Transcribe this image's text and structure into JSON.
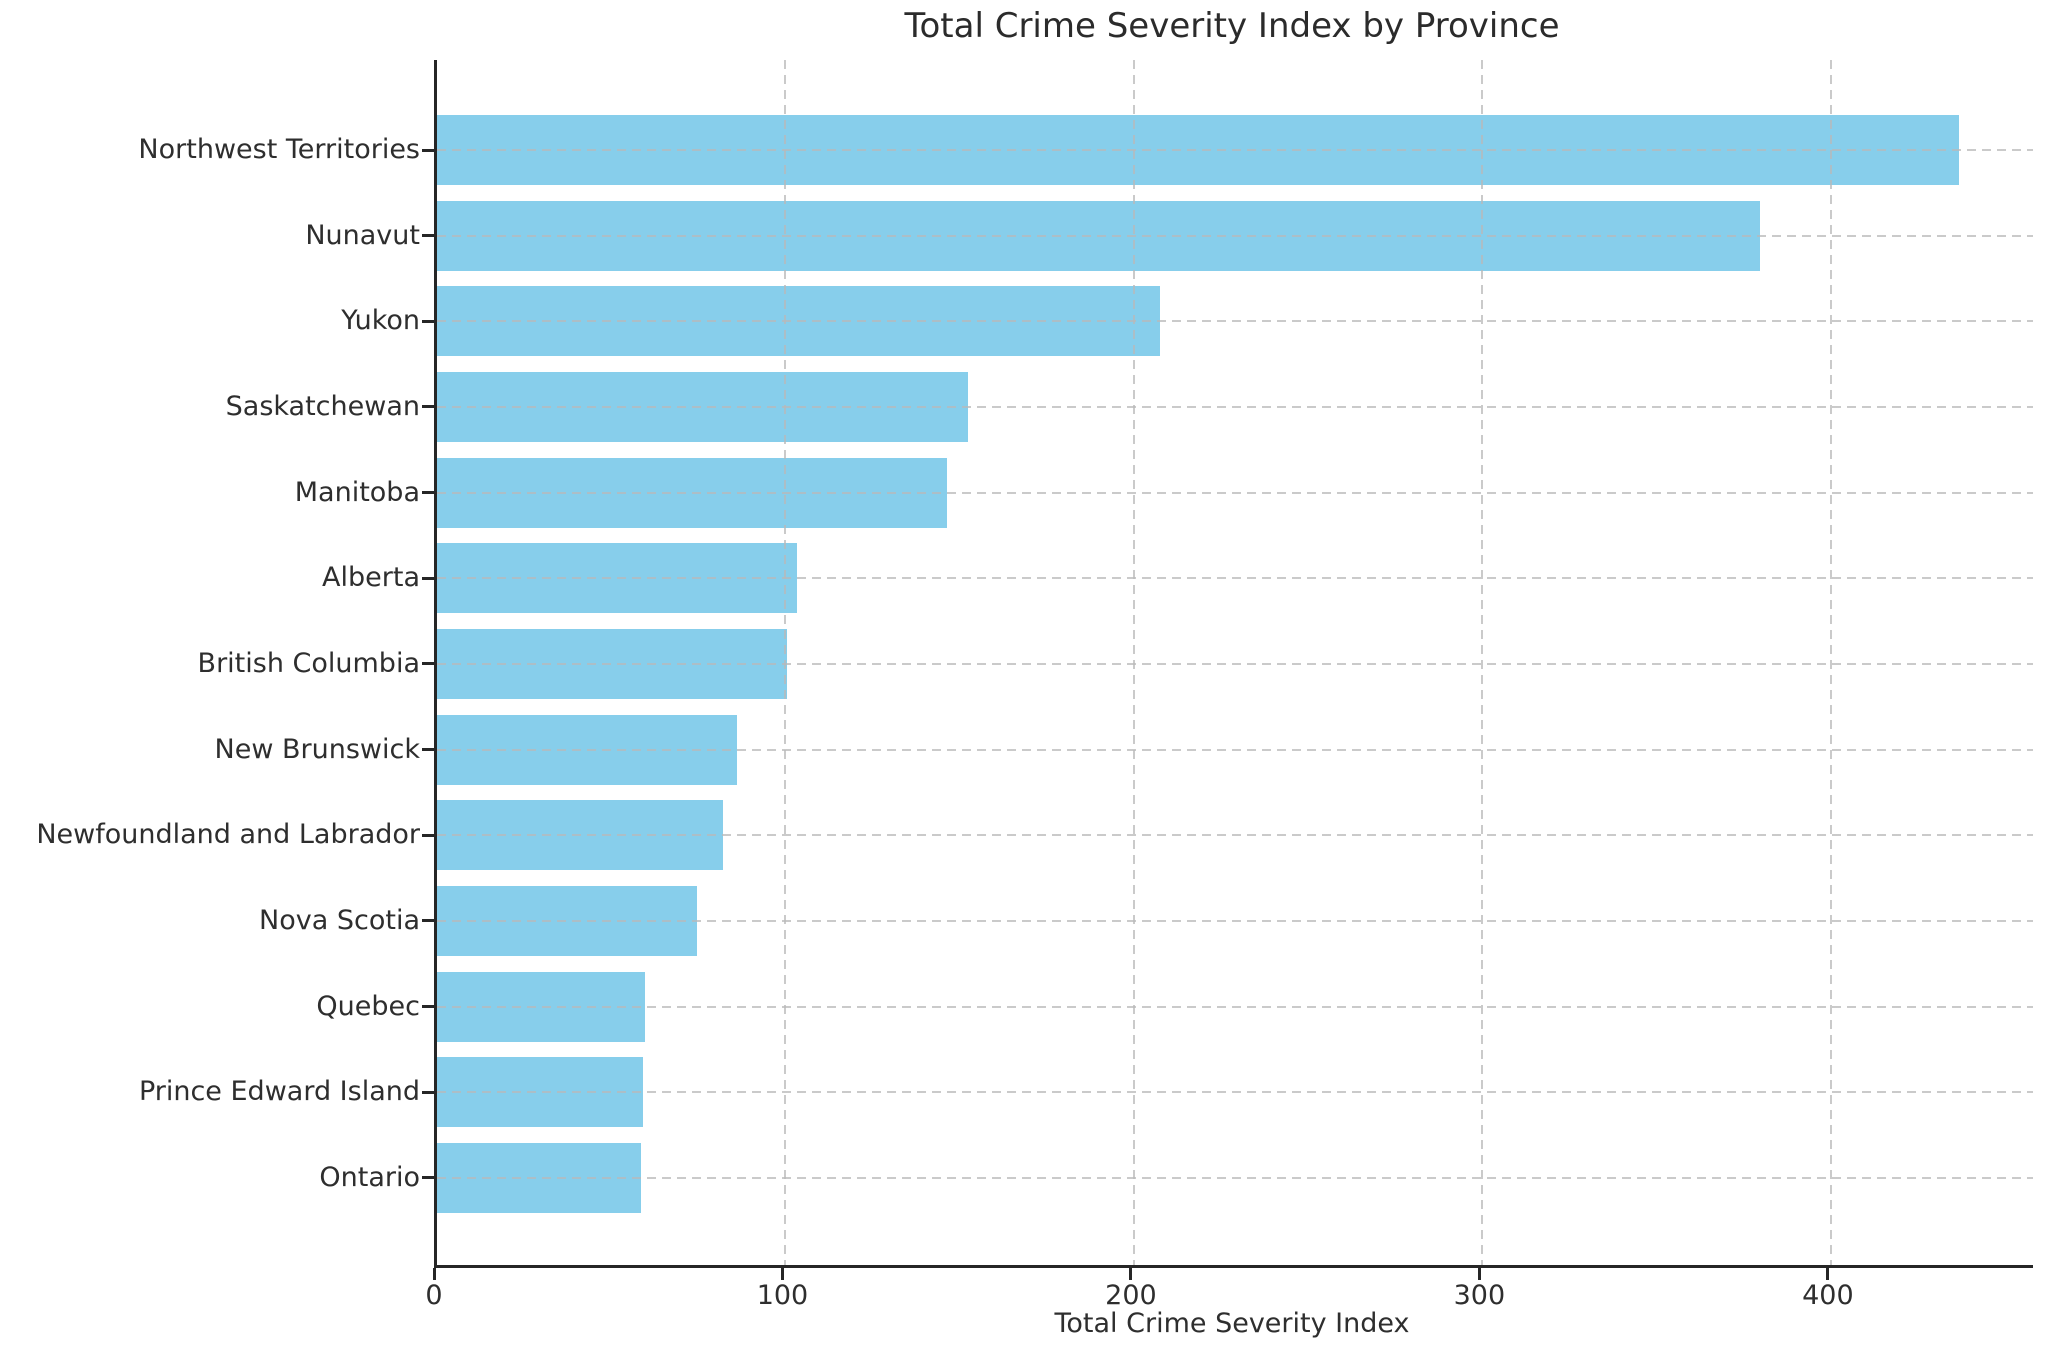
{
  "chart_data": {
    "type": "bar",
    "orientation": "horizontal",
    "title": "Total Crime Severity Index by Province",
    "xlabel": "Total Crime Severity Index",
    "ylabel": "",
    "categories": [
      "Northwest Territories",
      "Nunavut",
      "Yukon",
      "Saskatchewan",
      "Manitoba",
      "Alberta",
      "British Columbia",
      "New Brunswick",
      "Newfoundland and Labrador",
      "Nova Scotia",
      "Quebec",
      "Prince Edward Island",
      "Ontario"
    ],
    "values": [
      436.9,
      379.8,
      207.5,
      152.4,
      146.4,
      103.4,
      100.3,
      86.2,
      82.2,
      74.6,
      59.8,
      59.1,
      58.4
    ],
    "xlim": [
      0,
      458
    ],
    "xticks": [
      0,
      100,
      200,
      300,
      400
    ],
    "grid": true,
    "grid_style": "dashed",
    "legend": null,
    "bar_color": "#87CEEB",
    "background_color": "#ffffff",
    "text_color": "#2e2e2e",
    "grid_color": "#bbbbbb",
    "spine_color": "#262626"
  }
}
